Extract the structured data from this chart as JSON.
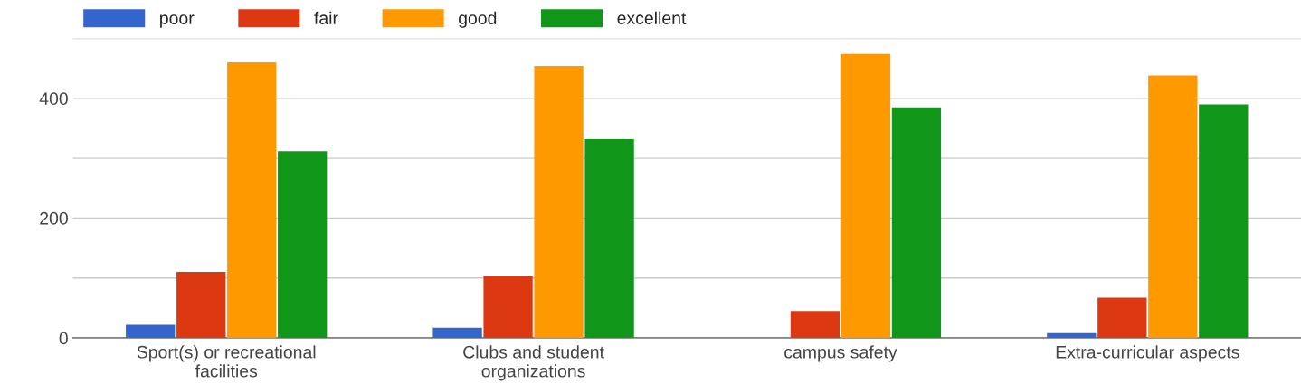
{
  "chart_data": {
    "type": "bar",
    "categories": [
      "Sport(s) or recreational\nfacilities",
      "Clubs and student\norganizations",
      "campus safety",
      "Extra-curricular aspects"
    ],
    "series": [
      {
        "name": "poor",
        "color": "#3366cc",
        "values": [
          22,
          17,
          null,
          8
        ]
      },
      {
        "name": "fair",
        "color": "#dc3912",
        "values": [
          110,
          103,
          45,
          67
        ]
      },
      {
        "name": "good",
        "color": "#ff9900",
        "values": [
          460,
          454,
          474,
          438
        ]
      },
      {
        "name": "excellent",
        "color": "#109618",
        "values": [
          312,
          332,
          385,
          390
        ]
      }
    ],
    "ylim": [
      0,
      500
    ],
    "yticks": [
      0,
      {
        "value": 100,
        "label": null
      },
      200,
      {
        "value": 300,
        "label": null
      },
      400,
      {
        "value": 500,
        "label": null
      }
    ],
    "grid": "y",
    "legend": "top left"
  }
}
